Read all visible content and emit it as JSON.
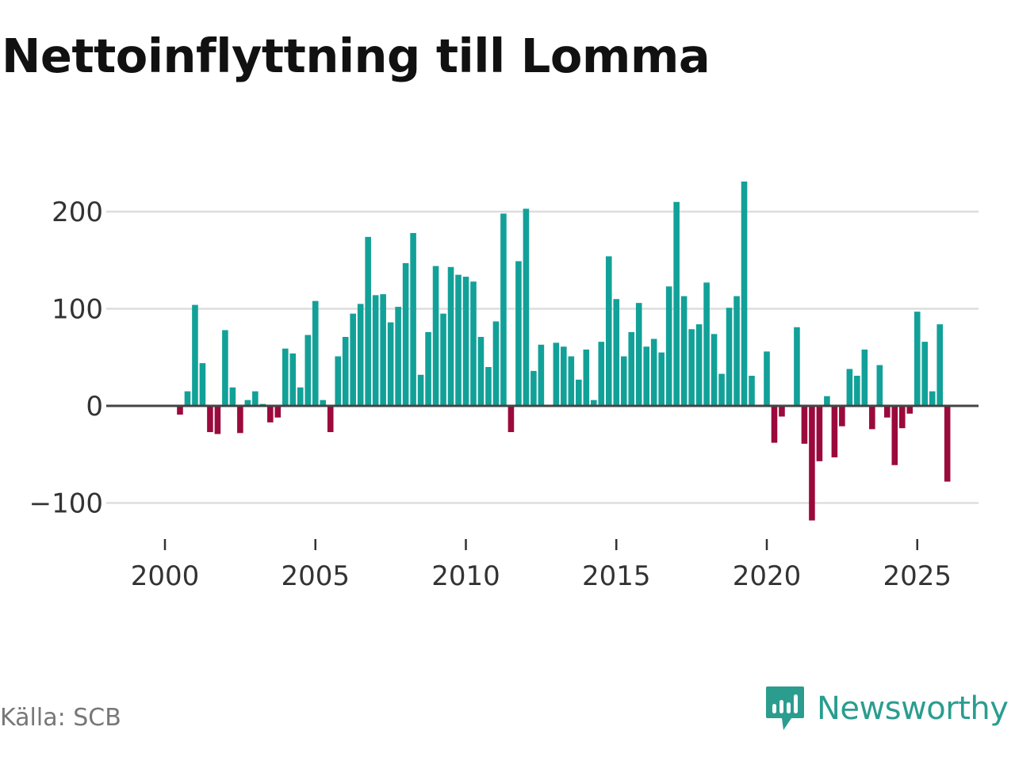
{
  "chart_data": {
    "type": "bar",
    "title": "Nettoinflyttning till Lomma",
    "xlabel": "",
    "ylabel": "",
    "ylim": [
      -120,
      240
    ],
    "xlim": [
      1999.6,
      2026.8
    ],
    "yticks": [
      {
        "value": 200,
        "label": "200"
      },
      {
        "value": 100,
        "label": "100"
      },
      {
        "value": 0,
        "label": "0"
      },
      {
        "value": -100,
        "label": "−100"
      }
    ],
    "xticks": [
      {
        "value": 2000,
        "label": "2000"
      },
      {
        "value": 2005,
        "label": "2005"
      },
      {
        "value": 2010,
        "label": "2010"
      },
      {
        "value": 2015,
        "label": "2015"
      },
      {
        "value": 2020,
        "label": "2020"
      },
      {
        "value": 2025,
        "label": "2025"
      }
    ],
    "start_year": 2000,
    "period_length_years": 0.25,
    "positive_color": "#12a198",
    "negative_color": "#9b0a3c",
    "values": [
      0,
      0,
      -9,
      15,
      104,
      44,
      -27,
      -29,
      78,
      19,
      -28,
      6,
      15,
      2,
      -17,
      -12,
      59,
      54,
      19,
      73,
      108,
      6,
      -27,
      51,
      71,
      95,
      105,
      174,
      114,
      115,
      86,
      102,
      147,
      178,
      32,
      76,
      144,
      95,
      143,
      135,
      133,
      128,
      71,
      40,
      87,
      198,
      -27,
      149,
      203,
      36,
      63,
      0,
      65,
      61,
      51,
      27,
      58,
      6,
      66,
      154,
      110,
      51,
      76,
      106,
      61,
      69,
      55,
      123,
      210,
      113,
      79,
      84,
      127,
      74,
      33,
      101,
      113,
      231,
      31,
      0,
      56,
      -38,
      -11,
      0,
      81,
      -39,
      -118,
      -57,
      10,
      -53,
      -21,
      38,
      31,
      58,
      -24,
      42,
      -12,
      -61,
      -23,
      -8,
      97,
      66,
      15,
      84,
      -78
    ]
  },
  "source": "Källa: SCB",
  "brand": {
    "name": "Newsworthy",
    "color": "#2a9d8f"
  }
}
